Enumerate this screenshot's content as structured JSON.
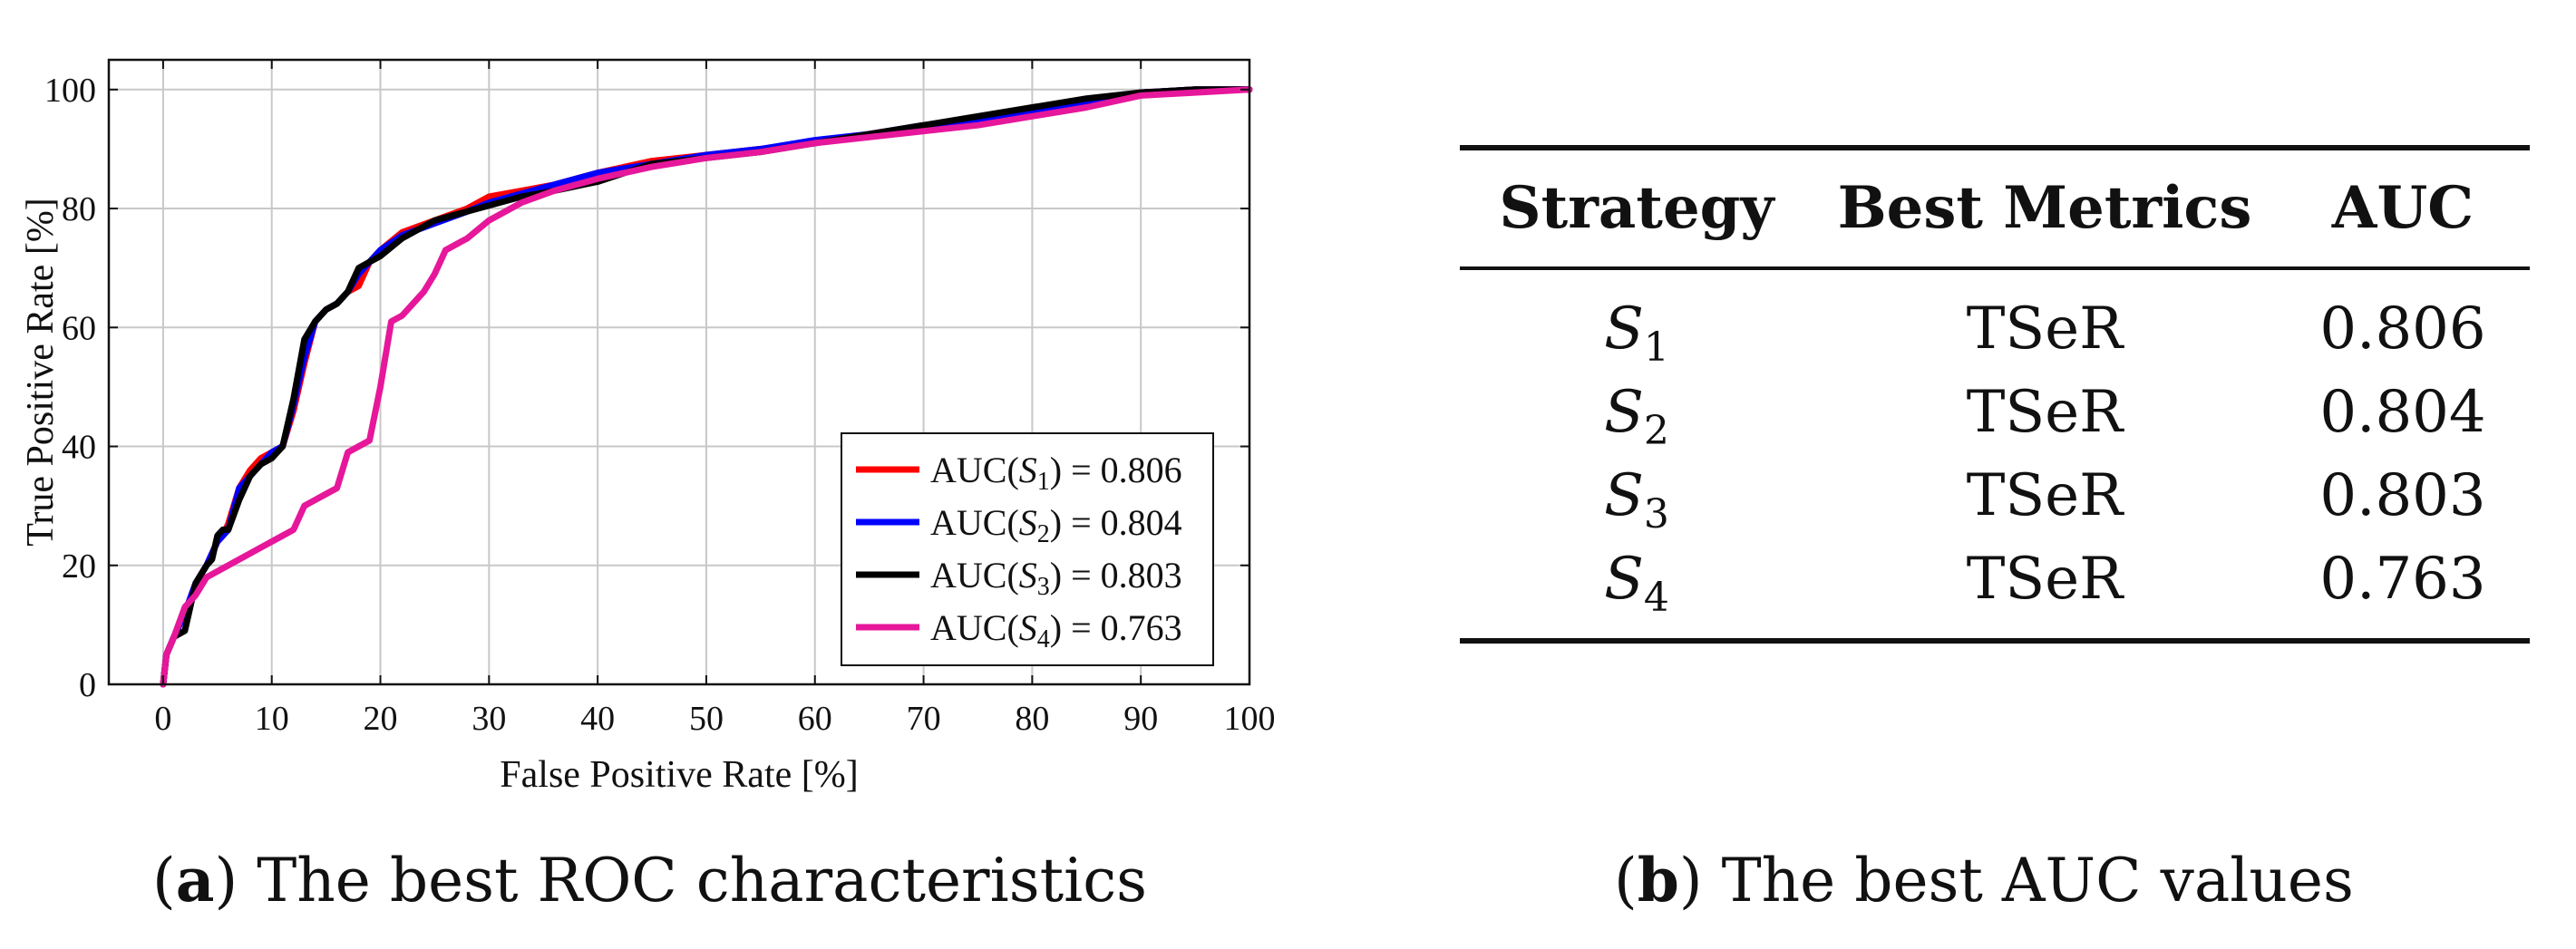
{
  "chart_data": {
    "type": "line",
    "xlabel": "False Positive Rate [%]",
    "ylabel": "True Positive Rate [%]",
    "xlim": [
      -5,
      100
    ],
    "ylim": [
      0,
      105
    ],
    "xticks": [
      0,
      10,
      20,
      30,
      40,
      50,
      60,
      70,
      80,
      90,
      100
    ],
    "yticks": [
      0,
      20,
      40,
      60,
      80,
      100
    ],
    "grid": true,
    "legend_position": "bottom-right",
    "series": [
      {
        "name": "S1",
        "legend_prefix": "AUC(",
        "legend_sym": "S",
        "legend_sub": "1",
        "legend_suffix": ") = 0.806",
        "color": "#ff0000",
        "x": [
          0,
          0.3,
          1,
          2,
          3,
          4,
          5,
          5.5,
          6,
          7,
          8,
          9,
          10,
          11,
          12,
          13,
          14,
          15,
          16,
          17,
          18,
          19,
          20,
          22,
          25,
          28,
          30,
          33,
          36,
          40,
          45,
          50,
          55,
          60,
          65,
          70,
          75,
          80,
          85,
          90,
          95,
          100
        ],
        "y": [
          0,
          5,
          8,
          12,
          17,
          20,
          24,
          25,
          27,
          33,
          36,
          38,
          39,
          40,
          46,
          54,
          61,
          63,
          64,
          66,
          67,
          71,
          73,
          76,
          78,
          80,
          82,
          83,
          84,
          86,
          88,
          89,
          90,
          91,
          92.5,
          94,
          95,
          96.5,
          98,
          99.5,
          100,
          100
        ]
      },
      {
        "name": "S2",
        "legend_prefix": "AUC(",
        "legend_sym": "S",
        "legend_sub": "2",
        "legend_suffix": ") = 0.804",
        "color": "#0000ff",
        "x": [
          0,
          0.3,
          1,
          2,
          3,
          4,
          5,
          5.5,
          6,
          7,
          8,
          9,
          10,
          11,
          12,
          13,
          14,
          15,
          16,
          17,
          18,
          19,
          20,
          22,
          25,
          28,
          30,
          33,
          36,
          40,
          45,
          50,
          55,
          60,
          65,
          70,
          75,
          80,
          85,
          90,
          95,
          100
        ],
        "y": [
          0,
          5,
          8,
          12,
          17,
          20,
          24,
          25,
          26,
          33,
          35,
          37,
          39,
          40,
          47,
          55,
          61,
          63,
          64,
          66,
          69,
          71,
          73,
          75.5,
          77.5,
          79.5,
          81,
          82.5,
          84,
          86,
          87.5,
          89,
          90,
          91.5,
          92.5,
          94,
          95,
          96,
          98,
          99.5,
          100,
          100
        ]
      },
      {
        "name": "S3",
        "legend_prefix": "AUC(",
        "legend_sym": "S",
        "legend_sub": "3",
        "legend_suffix": ") = 0.803",
        "color": "#000000",
        "x": [
          0,
          0.3,
          1,
          2,
          3,
          4,
          4.5,
          5,
          5.5,
          6,
          7,
          8,
          9,
          10,
          11,
          12,
          13,
          14,
          15,
          16,
          17,
          18,
          19,
          20,
          22,
          25,
          28,
          30,
          33,
          36,
          40,
          45,
          50,
          55,
          60,
          65,
          70,
          75,
          80,
          85,
          90,
          95,
          100
        ],
        "y": [
          0,
          5,
          8,
          9,
          17,
          20,
          21,
          25,
          26,
          26,
          31,
          35,
          37,
          38,
          40,
          48,
          58,
          61,
          63,
          64,
          66,
          70,
          71,
          72,
          75,
          78,
          79.5,
          80.5,
          82,
          83,
          84.5,
          87.5,
          88.5,
          89.5,
          91,
          92.5,
          94,
          95.5,
          97,
          98.5,
          99.5,
          100,
          100
        ]
      },
      {
        "name": "S4",
        "legend_prefix": "AUC(",
        "legend_sym": "S",
        "legend_sub": "4",
        "legend_suffix": ") = 0.763",
        "color": "#e6179a",
        "x": [
          0,
          0.3,
          1,
          2,
          3,
          4,
          5,
          7,
          9,
          11,
          12,
          13,
          14,
          15,
          16,
          17,
          18,
          19,
          20,
          21,
          22,
          23,
          24,
          25,
          26,
          28,
          30,
          33,
          36,
          40,
          45,
          50,
          55,
          60,
          65,
          70,
          75,
          80,
          85,
          90,
          95,
          100
        ],
        "y": [
          0,
          5,
          8,
          13,
          15,
          18,
          19,
          21,
          23,
          25,
          26,
          30,
          31,
          32,
          33,
          39,
          40,
          41,
          50,
          61,
          62,
          64,
          66,
          69,
          73,
          75,
          78,
          81,
          83,
          85,
          87,
          88.5,
          89.5,
          91,
          92,
          93,
          94,
          95.5,
          97,
          99,
          99.5,
          100
        ]
      }
    ]
  },
  "captions": {
    "a_letter": "a",
    "a_text": "The best ROC characteristics",
    "b_letter": "b",
    "b_text": "The best AUC values"
  },
  "table": {
    "headers": [
      "Strategy",
      "Best Metrics",
      "AUC"
    ],
    "rows": [
      {
        "symbol": "S",
        "sub": "1",
        "metric": "TSeR",
        "auc": "0.806"
      },
      {
        "symbol": "S",
        "sub": "2",
        "metric": "TSeR",
        "auc": "0.804"
      },
      {
        "symbol": "S",
        "sub": "3",
        "metric": "TSeR",
        "auc": "0.803"
      },
      {
        "symbol": "S",
        "sub": "4",
        "metric": "TSeR",
        "auc": "0.763"
      }
    ]
  }
}
